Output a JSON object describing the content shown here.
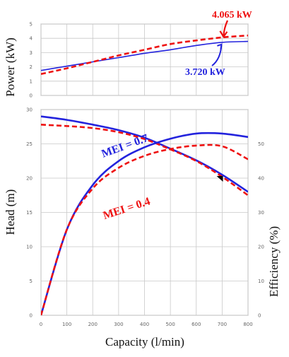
{
  "chart_data": {
    "type": "line",
    "xlabel": "Capacity (l/min)",
    "xlim": [
      0,
      800
    ],
    "x_ticks": [
      "0",
      "100",
      "200",
      "300",
      "400",
      "500",
      "600",
      "700",
      "800"
    ],
    "colors": {
      "blue": "#2323dd",
      "red": "#ee1111"
    },
    "panels": [
      {
        "id": "power",
        "ylabel": "Power (kW)",
        "ylim": [
          0,
          5
        ],
        "y_ticks": [
          "0",
          "1",
          "2",
          "3",
          "4",
          "5"
        ],
        "series": [
          {
            "color": "blue",
            "style": "solid",
            "x": [
              0,
              100,
              200,
              300,
              400,
              500,
              600,
              700,
              800
            ],
            "y": [
              1.75,
              2.05,
              2.35,
              2.65,
              2.95,
              3.2,
              3.5,
              3.72,
              3.78
            ]
          },
          {
            "color": "red",
            "style": "dashed",
            "x": [
              0,
              100,
              200,
              300,
              400,
              500,
              600,
              700,
              800
            ],
            "y": [
              1.5,
              1.9,
              2.35,
              2.8,
              3.2,
              3.6,
              3.85,
              4.065,
              4.2
            ]
          }
        ],
        "annotations": [
          {
            "text": "4.065 kW",
            "color": "red",
            "x": 700,
            "y": 4.065
          },
          {
            "text": "3.720 kW",
            "color": "blue",
            "x": 700,
            "y": 3.72
          }
        ]
      },
      {
        "id": "head",
        "ylabel": "Head (m)",
        "ylim": [
          0,
          30
        ],
        "y_ticks": [
          "0",
          "5",
          "10",
          "15",
          "20",
          "25",
          "30"
        ],
        "y2label": "Efficiency (%)",
        "y2lim": [
          0,
          60
        ],
        "y2_ticks": [
          "0",
          "10",
          "20",
          "30",
          "40",
          "50"
        ],
        "series": [
          {
            "axis": "left",
            "color": "blue",
            "style": "solid",
            "x": [
              0,
              100,
              200,
              300,
              400,
              500,
              600,
              700,
              800
            ],
            "y": [
              29,
              28.5,
              27.8,
              27,
              25.9,
              24.3,
              22.6,
              20.5,
              18
            ]
          },
          {
            "axis": "left",
            "color": "red",
            "style": "dashed",
            "x": [
              0,
              100,
              200,
              300,
              400,
              500,
              600,
              700,
              800
            ],
            "y": [
              27.8,
              27.6,
              27.3,
              26.7,
              25.7,
              24.2,
              22.5,
              20.2,
              17.5
            ]
          },
          {
            "axis": "right",
            "color": "blue",
            "style": "solid",
            "x": [
              0,
              100,
              200,
              300,
              400,
              500,
              600,
              700,
              800
            ],
            "y": [
              0,
              25,
              38,
              45,
              49,
              51.5,
              53,
              53,
              52
            ]
          },
          {
            "axis": "right",
            "color": "red",
            "style": "dashed",
            "x": [
              0,
              100,
              200,
              300,
              400,
              500,
              600,
              700,
              800
            ],
            "y": [
              0,
              25,
              37,
              43,
              46.5,
              48.5,
              49.5,
              49.3,
              45.5
            ]
          }
        ],
        "annotations": [
          {
            "text": "MEI = 0.7",
            "color": "blue",
            "x": 240,
            "y": 46
          },
          {
            "text": "MEI = 0.4",
            "color": "red",
            "x": 245,
            "y": 28
          }
        ],
        "marker": {
          "x": 695,
          "y": 20
        }
      }
    ]
  }
}
